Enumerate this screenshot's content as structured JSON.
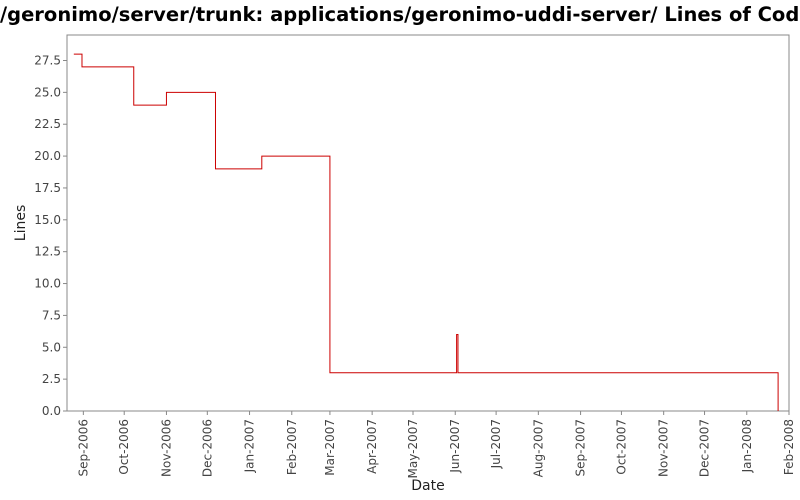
{
  "chart_data": {
    "type": "line",
    "line_style": "step",
    "title": "/geronimo/server/trunk: applications/geronimo-uddi-server/ Lines of Code",
    "xlabel": "Date",
    "ylabel": "Lines",
    "xlim": [
      "2006-08-20",
      "2008-02-01"
    ],
    "ylim": [
      0,
      29.5
    ],
    "x_ticks": [
      "2006-09-01",
      "2006-10-01",
      "2006-11-01",
      "2006-12-01",
      "2007-01-01",
      "2007-02-01",
      "2007-03-01",
      "2007-04-01",
      "2007-05-01",
      "2007-06-01",
      "2007-07-01",
      "2007-08-01",
      "2007-09-01",
      "2007-10-01",
      "2007-11-01",
      "2007-12-01",
      "2008-01-01",
      "2008-02-01"
    ],
    "x_tick_labels": [
      "Sep-2006",
      "Oct-2006",
      "Nov-2006",
      "Dec-2006",
      "Jan-2007",
      "Feb-2007",
      "Mar-2007",
      "Apr-2007",
      "May-2007",
      "Jun-2007",
      "Jul-2007",
      "Aug-2007",
      "Sep-2007",
      "Oct-2007",
      "Nov-2007",
      "Dec-2007",
      "Jan-2008",
      "Feb-2008"
    ],
    "y_ticks": [
      0,
      2.5,
      5,
      7.5,
      10,
      12.5,
      15,
      17.5,
      20,
      22.5,
      25,
      27.5
    ],
    "y_tick_labels": [
      "0.0",
      "2.5",
      "5.0",
      "7.5",
      "10.0",
      "12.5",
      "15.0",
      "17.5",
      "20.0",
      "22.5",
      "25.0",
      "27.5"
    ],
    "grid": false,
    "legend": false,
    "color": "#cc0000",
    "series": [
      {
        "points": [
          [
            "2006-08-25",
            28
          ],
          [
            "2006-08-31",
            27
          ],
          [
            "2006-10-08",
            24
          ],
          [
            "2006-11-01",
            25
          ],
          [
            "2006-12-07",
            19
          ],
          [
            "2007-01-10",
            20
          ],
          [
            "2007-03-01",
            3
          ],
          [
            "2007-06-02",
            6
          ],
          [
            "2007-06-03",
            3
          ],
          [
            "2008-01-24",
            0
          ]
        ]
      }
    ]
  }
}
